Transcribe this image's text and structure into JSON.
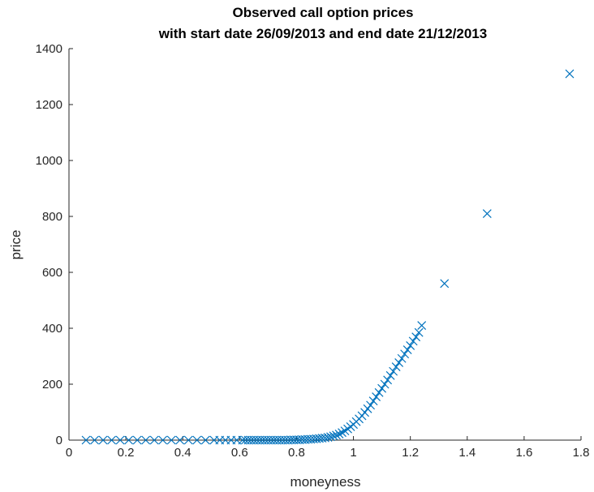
{
  "chart_data": {
    "type": "scatter",
    "title": [
      "Observed call option prices",
      "with start date 26/09/2013 and end date 21/12/2013"
    ],
    "xlabel": "moneyness",
    "ylabel": "price",
    "xlim": [
      0,
      1.8
    ],
    "ylim": [
      0,
      1400
    ],
    "xticks": [
      0,
      0.2,
      0.4,
      0.6,
      0.8,
      1,
      1.2,
      1.4,
      1.6,
      1.8
    ],
    "xtick_labels": [
      "0",
      "0.2",
      "0.4",
      "0.6",
      "0.8",
      "1",
      "1.2",
      "1.4",
      "1.6",
      "1.8"
    ],
    "yticks": [
      0,
      200,
      400,
      600,
      800,
      1000,
      1200,
      1400
    ],
    "ytick_labels": [
      "0",
      "200",
      "400",
      "600",
      "800",
      "1000",
      "1200",
      "1400"
    ],
    "marker": "x",
    "grid": false,
    "colors": {
      "series": "#0072bd",
      "axis": "#262626"
    },
    "series": [
      {
        "x": [
          0.06,
          0.09,
          0.12,
          0.15,
          0.18,
          0.21,
          0.24,
          0.27,
          0.3,
          0.33,
          0.36,
          0.39,
          0.42,
          0.45,
          0.48,
          0.51,
          0.53,
          0.55,
          0.57,
          0.59,
          0.61,
          0.62,
          0.63,
          0.64,
          0.65,
          0.66,
          0.67,
          0.68,
          0.69,
          0.7,
          0.71,
          0.72,
          0.73,
          0.74,
          0.75,
          0.76,
          0.77,
          0.78,
          0.79,
          0.8,
          0.81,
          0.82,
          0.83,
          0.84,
          0.85,
          0.86,
          0.87,
          0.88,
          0.89,
          0.9,
          0.91,
          0.92,
          0.93,
          0.94,
          0.95,
          0.96,
          0.97,
          0.98,
          0.99,
          1.0,
          1.01,
          1.02,
          1.03,
          1.04,
          1.05,
          1.06,
          1.07,
          1.08,
          1.09,
          1.1,
          1.11,
          1.12,
          1.13,
          1.14,
          1.15,
          1.16,
          1.17,
          1.18,
          1.19,
          1.2,
          1.21,
          1.22,
          1.23,
          1.24,
          1.32,
          1.47,
          1.76
        ],
        "y": [
          0,
          0,
          0,
          0,
          0,
          0,
          0,
          0,
          0,
          0,
          0,
          0,
          0,
          0,
          0,
          0,
          0,
          0,
          0,
          0,
          0,
          0,
          0,
          0,
          0,
          0,
          0,
          0,
          0,
          0,
          0,
          0,
          0,
          0,
          0,
          0,
          0,
          1,
          1,
          1,
          1,
          2,
          2,
          3,
          3,
          4,
          5,
          6,
          7,
          8,
          10,
          12,
          15,
          18,
          22,
          27,
          33,
          40,
          48,
          56,
          66,
          76,
          87,
          99,
          112,
          125,
          140,
          155,
          170,
          185,
          200,
          215,
          231,
          246,
          262,
          277,
          292,
          308,
          323,
          338,
          354,
          369,
          385,
          410,
          560,
          810,
          1310
        ]
      }
    ]
  }
}
